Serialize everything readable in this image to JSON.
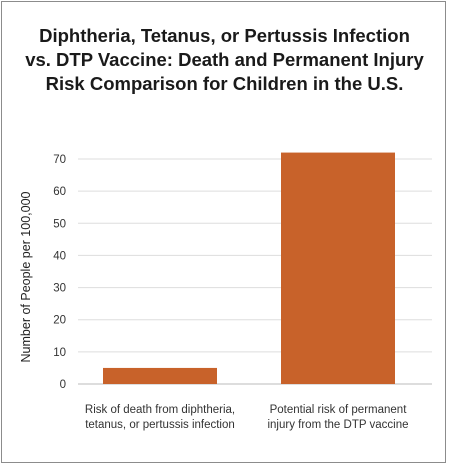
{
  "chart_data": {
    "type": "bar",
    "title_lines": [
      "Diphtheria, Tetanus, or Pertussis Infection",
      "vs. DTP Vaccine: Death and Permanent Injury",
      "Risk Comparison for Children in the U.S."
    ],
    "categories": [
      [
        "Risk of death from diphtheria,",
        "tetanus, or pertussis infection"
      ],
      [
        "Potential risk of permanent",
        "injury from the DTP vaccine"
      ]
    ],
    "values": [
      5,
      72
    ],
    "ylabel": "Number of People per 100,000",
    "xlabel": "",
    "ylim": [
      0,
      75
    ],
    "yticks": [
      0,
      10,
      20,
      30,
      40,
      50,
      60,
      70
    ],
    "grid": true,
    "bar_color": "#c8622a",
    "grid_color": "#dddddd"
  }
}
